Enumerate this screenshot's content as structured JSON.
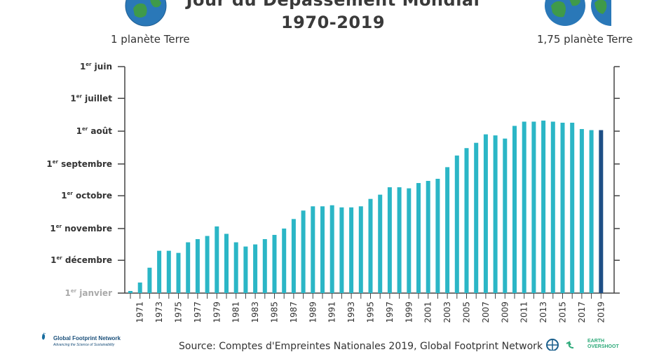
{
  "title": "Jour du Dépassement Mondial",
  "subtitle": "1970-2019",
  "left_label": "1 planète Terre",
  "right_label": "1,75 planète Terre",
  "source": "Source: Comptes d'Empreintes Nationales 2019, Global Footprint Network",
  "logos": {
    "gfn_name": "Global Footprint Network",
    "gfn_tagline": "Advancing the Science of Sustainability",
    "eo_line1": "EARTH",
    "eo_line2": "OVERSHOOT"
  },
  "colors": {
    "bar": "#2bb6c6",
    "bar_last": "#1e4f86",
    "axis": "#444444",
    "globe_ocean": "#2a78b8",
    "globe_land": "#3f9a4a"
  },
  "chart_data": {
    "type": "bar",
    "ylabel_ticks": [
      {
        "sup": "er",
        "label": "1",
        "rest": " juin",
        "value": 152
      },
      {
        "sup": "er",
        "label": "1",
        "rest": " juillet",
        "value": 182
      },
      {
        "sup": "er",
        "label": "1",
        "rest": " août",
        "value": 213
      },
      {
        "sup": "er",
        "label": "1",
        "rest": " septembre",
        "value": 244
      },
      {
        "sup": "er",
        "label": "1",
        "rest": " octobre",
        "value": 274
      },
      {
        "sup": "er",
        "label": "1",
        "rest": " novembre",
        "value": 305
      },
      {
        "sup": "er",
        "label": "1",
        "rest": " décembre",
        "value": 335
      },
      {
        "sup": "er",
        "label": "1",
        "rest": " janvier",
        "value": 366
      }
    ],
    "ylim": [
      152,
      366
    ],
    "x_tick_labels": [
      "1971",
      "1973",
      "1975",
      "1977",
      "1979",
      "1981",
      "1983",
      "1985",
      "1987",
      "1989",
      "1991",
      "1993",
      "1995",
      "1997",
      "1999",
      "2001",
      "2003",
      "2005",
      "2007",
      "2009",
      "2011",
      "2013",
      "2015",
      "2017",
      "2019"
    ],
    "years": [
      1970,
      1971,
      1972,
      1973,
      1974,
      1975,
      1976,
      1977,
      1978,
      1979,
      1980,
      1981,
      1982,
      1983,
      1984,
      1985,
      1986,
      1987,
      1988,
      1989,
      1990,
      1991,
      1992,
      1993,
      1994,
      1995,
      1996,
      1997,
      1998,
      1999,
      2000,
      2001,
      2002,
      2003,
      2004,
      2005,
      2006,
      2007,
      2008,
      2009,
      2010,
      2011,
      2012,
      2013,
      2014,
      2015,
      2016,
      2017,
      2018,
      2019
    ],
    "overshoot_day_of_year": [
      364,
      356,
      342,
      326,
      326,
      328,
      318,
      315,
      312,
      303,
      310,
      318,
      322,
      320,
      315,
      311,
      305,
      296,
      288,
      284,
      284,
      283,
      285,
      285,
      284,
      277,
      273,
      266,
      266,
      267,
      262,
      260,
      258,
      247,
      236,
      229,
      224,
      216,
      217,
      220,
      208,
      204,
      204,
      203,
      204,
      205,
      205,
      211,
      212,
      212
    ]
  }
}
